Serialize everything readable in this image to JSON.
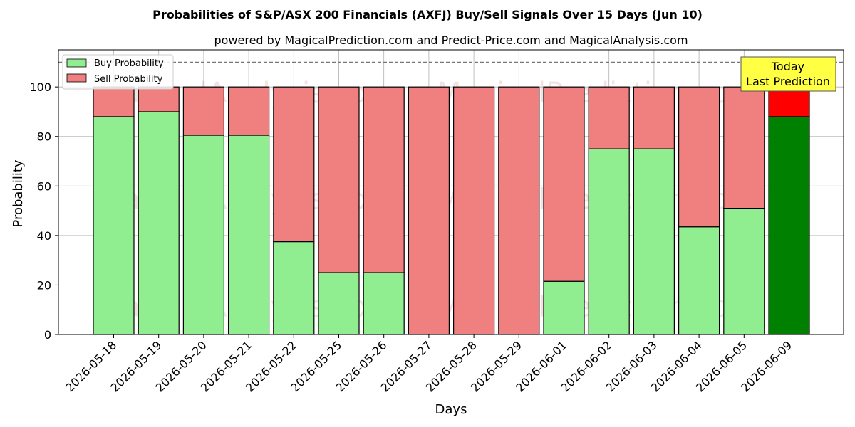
{
  "chart_data": {
    "type": "bar",
    "stacked": true,
    "title": "Probabilities of S&P/ASX 200 Financials (AXFJ) Buy/Sell Signals Over 15 Days (Jun 10)",
    "subtitle": "powered by MagicalPrediction.com and Predict-Price.com and MagicalAnalysis.com",
    "xlabel": "Days",
    "ylabel": "Probability",
    "ylim": [
      0,
      115
    ],
    "yticks": [
      "0",
      "20",
      "40",
      "60",
      "80",
      "100"
    ],
    "grid": true,
    "legend_position": "top-left",
    "reference_line": {
      "y": 110,
      "style": "dashed"
    },
    "categories": [
      "2026-05-18",
      "2026-05-19",
      "2026-05-20",
      "2026-05-21",
      "2026-05-22",
      "2026-05-25",
      "2026-05-26",
      "2026-05-27",
      "2026-05-28",
      "2026-05-29",
      "2026-06-01",
      "2026-06-02",
      "2026-06-03",
      "2026-06-04",
      "2026-06-05",
      "2026-06-09"
    ],
    "series": [
      {
        "name": "Buy Probability",
        "color": "#90ee90",
        "highlight_color": "#008000",
        "values": [
          88,
          90,
          80.5,
          80.5,
          37.5,
          25,
          25,
          0,
          0,
          0,
          21.5,
          75,
          75,
          43.5,
          51,
          88
        ]
      },
      {
        "name": "Sell Probability",
        "color": "#f08080",
        "highlight_color": "#ff0000",
        "values": [
          12,
          10,
          19.5,
          19.5,
          62.5,
          75,
          75,
          100,
          100,
          100,
          78.5,
          25,
          25,
          56.5,
          49,
          12
        ]
      }
    ],
    "highlight_index": 15,
    "annotation": {
      "line1": "Today",
      "line2": "Last Prediction",
      "color": "#ffff44"
    },
    "watermarks": [
      "MagicalAnalysis.com",
      "MagicalPrediction.com"
    ]
  }
}
